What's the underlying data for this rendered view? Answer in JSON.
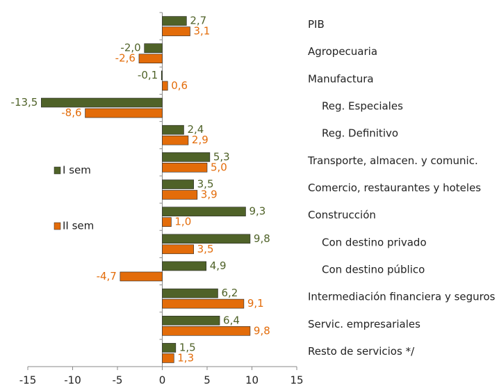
{
  "chart_data": {
    "type": "bar",
    "orientation": "horizontal",
    "categories": [
      "PIB",
      "Agropecuaria",
      "Manufactura",
      "Reg. Especiales",
      "Reg. Definitivo",
      "Transporte, almacen. y comunic.",
      "Comercio, restaurantes y hoteles",
      "Construcción",
      "Con destino privado",
      "Con destino público",
      "Intermediación financiera y seguros",
      "Servic. empresariales",
      "Resto de servicios */"
    ],
    "series": [
      {
        "name": "I sem",
        "color": "#4f6228",
        "values": [
          2.7,
          -2.0,
          -0.1,
          -13.5,
          2.4,
          5.3,
          3.5,
          9.3,
          9.8,
          4.9,
          6.2,
          6.4,
          1.5
        ],
        "value_labels": [
          "2,7",
          "-2,0",
          "-0,1",
          "-13,5",
          "2,4",
          "5,3",
          "3,5",
          "9,3",
          "9,8",
          "4,9",
          "6,2",
          "6,4",
          "1,5"
        ]
      },
      {
        "name": "II sem",
        "color": "#e36c0a",
        "values": [
          3.1,
          -2.6,
          0.6,
          -8.6,
          2.9,
          5.0,
          3.9,
          1.0,
          3.5,
          -4.7,
          9.1,
          9.8,
          1.3
        ],
        "value_labels": [
          "3,1",
          "-2,6",
          "0,6",
          "-8,6",
          "2,9",
          "5,0",
          "3,9",
          "1,0",
          "3,5",
          "-4,7",
          "9,1",
          "9,8",
          "1,3"
        ]
      }
    ],
    "xlim": [
      -15,
      15
    ],
    "xticks": [
      -15,
      -10,
      -5,
      0,
      5,
      10,
      15
    ],
    "grid": false
  }
}
